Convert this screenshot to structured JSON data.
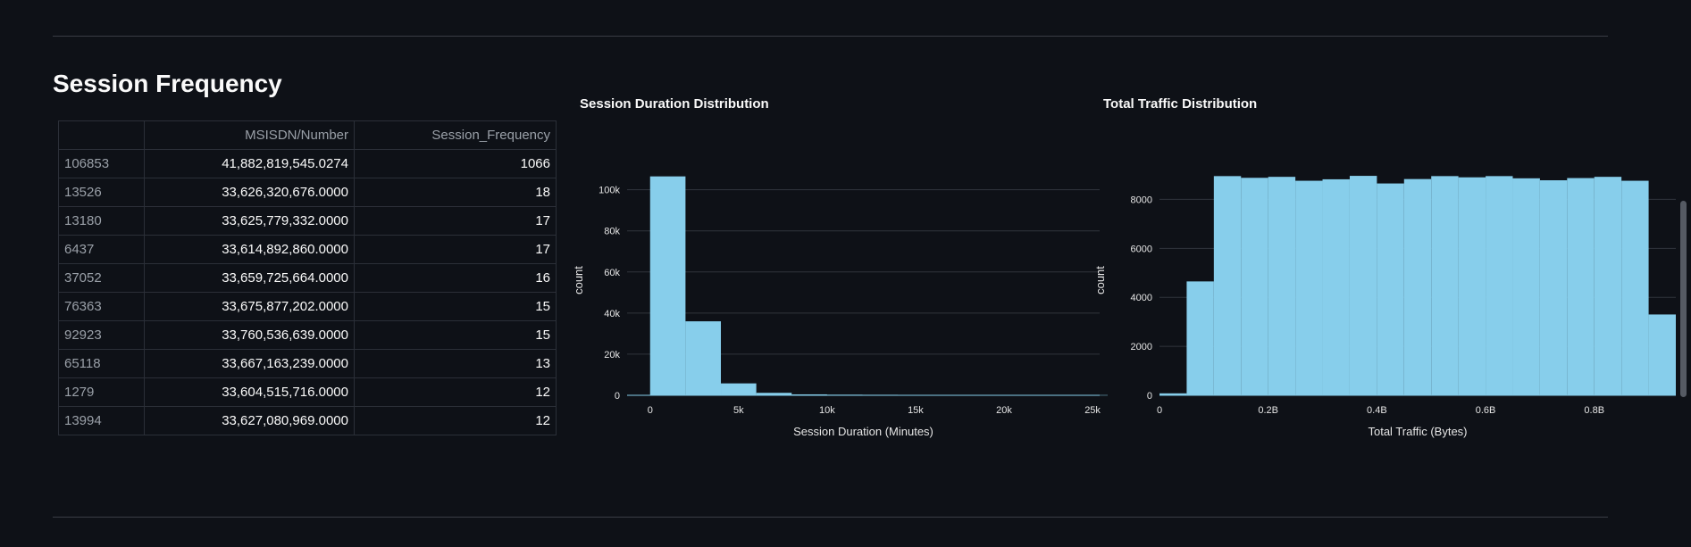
{
  "section": {
    "title": "Session Frequency"
  },
  "table": {
    "columns": [
      "",
      "MSISDN/Number",
      "Session_Frequency"
    ],
    "rows": [
      [
        "106853",
        "41,882,819,545.0274",
        "1066"
      ],
      [
        "13526",
        "33,626,320,676.0000",
        "18"
      ],
      [
        "13180",
        "33,625,779,332.0000",
        "17"
      ],
      [
        "6437",
        "33,614,892,860.0000",
        "17"
      ],
      [
        "37052",
        "33,659,725,664.0000",
        "16"
      ],
      [
        "76363",
        "33,675,877,202.0000",
        "15"
      ],
      [
        "92923",
        "33,760,536,639.0000",
        "15"
      ],
      [
        "65118",
        "33,667,163,239.0000",
        "13"
      ],
      [
        "1279",
        "33,604,515,716.0000",
        "12"
      ],
      [
        "13994",
        "33,627,080,969.0000",
        "12"
      ]
    ]
  },
  "chart_data": [
    {
      "type": "bar",
      "title": "Session Duration Distribution",
      "xlabel": "Session Duration (Minutes)",
      "ylabel": "count",
      "color": "#87ceeb",
      "xlim": [
        -1300,
        25400
      ],
      "ylim": [
        0,
        112000
      ],
      "xticks": [
        0,
        5000,
        10000,
        15000,
        20000,
        25000
      ],
      "xtick_labels": [
        "0",
        "5k",
        "10k",
        "15k",
        "20k",
        "25k"
      ],
      "yticks": [
        0,
        20000,
        40000,
        60000,
        80000,
        100000
      ],
      "ytick_labels": [
        "0",
        "20k",
        "40k",
        "60k",
        "80k",
        "100k"
      ],
      "bin_width": 2000,
      "bins_start": [
        0,
        2000,
        4000,
        6000,
        8000,
        10000,
        12000,
        14000,
        16000,
        18000,
        20000,
        22000,
        24000
      ],
      "values": [
        106500,
        36000,
        5800,
        1200,
        450,
        300,
        250,
        220,
        200,
        180,
        150,
        140,
        120
      ]
    },
    {
      "type": "bar",
      "title": "Total Traffic Distribution",
      "xlabel": "Total Traffic (Bytes)",
      "ylabel": "count",
      "color": "#87ceeb",
      "xlim": [
        0,
        0.95
      ],
      "ylim": [
        0,
        9400
      ],
      "xticks": [
        0,
        0.2,
        0.4,
        0.6,
        0.8
      ],
      "xtick_labels": [
        "0",
        "0.2B",
        "0.4B",
        "0.6B",
        "0.8B"
      ],
      "yticks": [
        0,
        2000,
        4000,
        6000,
        8000
      ],
      "ytick_labels": [
        "0",
        "2000",
        "4000",
        "6000",
        "8000"
      ],
      "bin_width": 0.05,
      "bins_start": [
        0,
        0.05,
        0.1,
        0.15,
        0.2,
        0.25,
        0.3,
        0.35,
        0.4,
        0.45,
        0.5,
        0.55,
        0.6,
        0.65,
        0.7,
        0.75,
        0.8,
        0.85,
        0.9
      ],
      "values": [
        80,
        4650,
        8950,
        8880,
        8920,
        8760,
        8820,
        8960,
        8650,
        8830,
        8950,
        8900,
        8950,
        8860,
        8780,
        8870,
        8920,
        8760,
        3300
      ]
    }
  ]
}
